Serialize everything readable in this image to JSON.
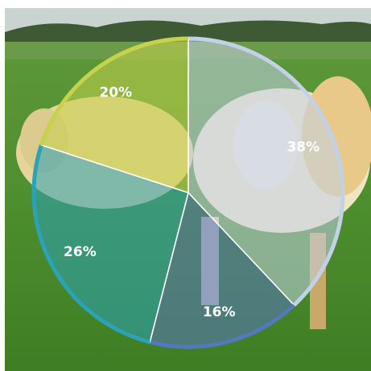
{
  "chart_data": {
    "type": "pie",
    "values": [
      38,
      16,
      26,
      20
    ],
    "value_labels": [
      "38%",
      "16%",
      "26%",
      "20%"
    ],
    "colors": [
      "#c3d1e6",
      "#5577bd",
      "#2ba2b6",
      "#c6d24c"
    ]
  }
}
